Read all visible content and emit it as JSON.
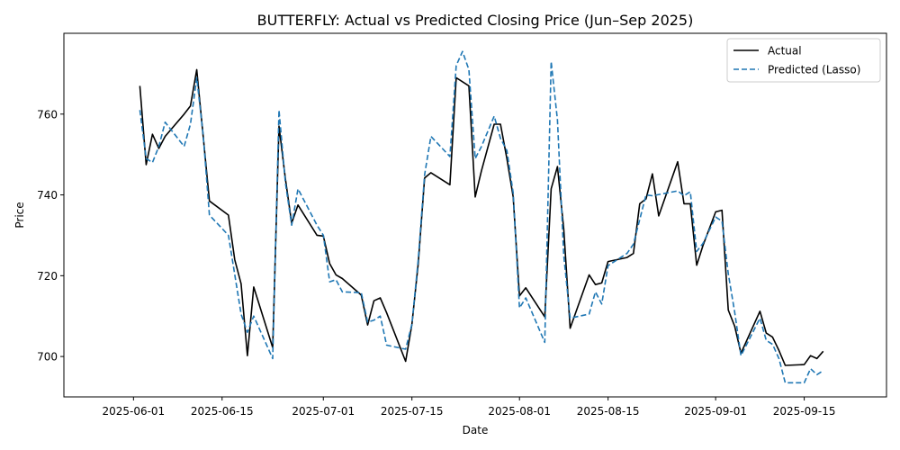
{
  "chart_data": {
    "type": "line",
    "title": "BUTTERFLY: Actual vs Predicted Closing Price (Jun–Sep 2025)",
    "xlabel": "Date",
    "ylabel": "Price",
    "x_ticks": [
      "2025-06-01",
      "2025-06-15",
      "2025-07-01",
      "2025-07-15",
      "2025-08-01",
      "2025-08-15",
      "2025-09-01",
      "2025-09-15"
    ],
    "y_ticks": [
      700,
      720,
      740,
      760
    ],
    "ylim": [
      690,
      780
    ],
    "xlim": [
      "2025-05-21",
      "2025-09-28"
    ],
    "grid": false,
    "legend_position": "top-right",
    "colors": {
      "actual": "#000000",
      "predicted": "#1f77b4"
    },
    "series": [
      {
        "name": "Actual",
        "style": "solid",
        "points": [
          [
            "2025-06-02",
            767
          ],
          [
            "2025-06-03",
            747.5
          ],
          [
            "2025-06-04",
            755
          ],
          [
            "2025-06-05",
            751.5
          ],
          [
            "2025-06-06",
            754.5
          ],
          [
            "2025-06-09",
            760
          ],
          [
            "2025-06-10",
            762
          ],
          [
            "2025-06-11",
            771
          ],
          [
            "2025-06-13",
            738.5
          ],
          [
            "2025-06-16",
            735
          ],
          [
            "2025-06-17",
            724
          ],
          [
            "2025-06-18",
            718
          ],
          [
            "2025-06-19",
            700.2
          ],
          [
            "2025-06-20",
            717.2
          ],
          [
            "2025-06-23",
            702.2
          ],
          [
            "2025-06-24",
            757
          ],
          [
            "2025-06-25",
            744
          ],
          [
            "2025-06-26",
            733
          ],
          [
            "2025-06-27",
            737.5
          ],
          [
            "2025-06-30",
            730
          ],
          [
            "2025-07-01",
            729.8
          ],
          [
            "2025-07-02",
            723
          ],
          [
            "2025-07-03",
            720.2
          ],
          [
            "2025-07-04",
            719.3
          ],
          [
            "2025-07-07",
            715.2
          ],
          [
            "2025-07-08",
            707.8
          ],
          [
            "2025-07-09",
            713.8
          ],
          [
            "2025-07-10",
            714.5
          ],
          [
            "2025-07-11",
            710.8
          ],
          [
            "2025-07-14",
            698.8
          ],
          [
            "2025-07-15",
            708
          ],
          [
            "2025-07-16",
            723
          ],
          [
            "2025-07-17",
            744.2
          ],
          [
            "2025-07-18",
            745.5
          ],
          [
            "2025-07-21",
            742.5
          ],
          [
            "2025-07-22",
            769
          ],
          [
            "2025-07-24",
            767
          ],
          [
            "2025-07-25",
            739.5
          ],
          [
            "2025-07-26",
            746
          ],
          [
            "2025-07-28",
            757.5
          ],
          [
            "2025-07-29",
            757.5
          ],
          [
            "2025-07-30",
            749
          ],
          [
            "2025-07-31",
            739.5
          ],
          [
            "2025-08-01",
            715
          ],
          [
            "2025-08-02",
            717
          ],
          [
            "2025-08-05",
            709.8
          ],
          [
            "2025-08-06",
            741.5
          ],
          [
            "2025-08-07",
            747
          ],
          [
            "2025-08-08",
            731.5
          ],
          [
            "2025-08-09",
            707
          ],
          [
            "2025-08-12",
            720.2
          ],
          [
            "2025-08-13",
            717.8
          ],
          [
            "2025-08-14",
            718.2
          ],
          [
            "2025-08-15",
            723.5
          ],
          [
            "2025-08-18",
            724.5
          ],
          [
            "2025-08-19",
            725.5
          ],
          [
            "2025-08-20",
            737.8
          ],
          [
            "2025-08-21",
            739
          ],
          [
            "2025-08-22",
            745.2
          ],
          [
            "2025-08-23",
            734.8
          ],
          [
            "2025-08-26",
            748.2
          ],
          [
            "2025-08-27",
            737.8
          ],
          [
            "2025-08-28",
            737.8
          ],
          [
            "2025-08-29",
            722.6
          ],
          [
            "2025-08-30",
            727.5
          ],
          [
            "2025-09-01",
            735.8
          ],
          [
            "2025-09-02",
            736.2
          ],
          [
            "2025-09-03",
            711.5
          ],
          [
            "2025-09-04",
            707.5
          ],
          [
            "2025-09-05",
            700.8
          ],
          [
            "2025-09-08",
            711.2
          ],
          [
            "2025-09-09",
            705.8
          ],
          [
            "2025-09-10",
            704.8
          ],
          [
            "2025-09-11",
            701.5
          ],
          [
            "2025-09-12",
            697.8
          ],
          [
            "2025-09-15",
            698
          ],
          [
            "2025-09-16",
            700.2
          ],
          [
            "2025-09-17",
            699.5
          ],
          [
            "2025-09-18",
            701.3
          ]
        ]
      },
      {
        "name": "Predicted (Lasso)",
        "style": "dashed",
        "points": [
          [
            "2025-06-02",
            761
          ],
          [
            "2025-06-03",
            749
          ],
          [
            "2025-06-04",
            748
          ],
          [
            "2025-06-05",
            752
          ],
          [
            "2025-06-06",
            758
          ],
          [
            "2025-06-07",
            756
          ],
          [
            "2025-06-09",
            752
          ],
          [
            "2025-06-10",
            757.5
          ],
          [
            "2025-06-11",
            769
          ],
          [
            "2025-06-12",
            755
          ],
          [
            "2025-06-13",
            735
          ],
          [
            "2025-06-16",
            730
          ],
          [
            "2025-06-18",
            710.5
          ],
          [
            "2025-06-19",
            706
          ],
          [
            "2025-06-20",
            710
          ],
          [
            "2025-06-23",
            699.5
          ],
          [
            "2025-06-24",
            761
          ],
          [
            "2025-06-25",
            743
          ],
          [
            "2025-06-26",
            732.5
          ],
          [
            "2025-06-27",
            741.5
          ],
          [
            "2025-06-30",
            732.5
          ],
          [
            "2025-07-01",
            730
          ],
          [
            "2025-07-02",
            718.5
          ],
          [
            "2025-07-03",
            719
          ],
          [
            "2025-07-04",
            716
          ],
          [
            "2025-07-07",
            715.8
          ],
          [
            "2025-07-08",
            708.5
          ],
          [
            "2025-07-09",
            709
          ],
          [
            "2025-07-10",
            710
          ],
          [
            "2025-07-11",
            702.8
          ],
          [
            "2025-07-14",
            701.8
          ],
          [
            "2025-07-15",
            708
          ],
          [
            "2025-07-16",
            724
          ],
          [
            "2025-07-17",
            745
          ],
          [
            "2025-07-18",
            754.5
          ],
          [
            "2025-07-21",
            749.5
          ],
          [
            "2025-07-22",
            772
          ],
          [
            "2025-07-23",
            775.5
          ],
          [
            "2025-07-24",
            771
          ],
          [
            "2025-07-25",
            749
          ],
          [
            "2025-07-26",
            752
          ],
          [
            "2025-07-28",
            759.5
          ],
          [
            "2025-07-29",
            754
          ],
          [
            "2025-07-30",
            751
          ],
          [
            "2025-07-31",
            740.5
          ],
          [
            "2025-08-01",
            712
          ],
          [
            "2025-08-02",
            714.5
          ],
          [
            "2025-08-05",
            703.5
          ],
          [
            "2025-08-06",
            773
          ],
          [
            "2025-08-07",
            758.5
          ],
          [
            "2025-08-08",
            725
          ],
          [
            "2025-08-09",
            709.5
          ],
          [
            "2025-08-12",
            710.5
          ],
          [
            "2025-08-13",
            716
          ],
          [
            "2025-08-14",
            713
          ],
          [
            "2025-08-15",
            722.5
          ],
          [
            "2025-08-18",
            725.5
          ],
          [
            "2025-08-19",
            727.8
          ],
          [
            "2025-08-21",
            740
          ],
          [
            "2025-08-22",
            739.8
          ],
          [
            "2025-08-26",
            741
          ],
          [
            "2025-08-27",
            739.8
          ],
          [
            "2025-08-28",
            740.8
          ],
          [
            "2025-08-29",
            726
          ],
          [
            "2025-08-30",
            728
          ],
          [
            "2025-09-01",
            734.5
          ],
          [
            "2025-09-02",
            733.5
          ],
          [
            "2025-09-03",
            720.5
          ],
          [
            "2025-09-04",
            711
          ],
          [
            "2025-09-05",
            700.2
          ],
          [
            "2025-09-08",
            709.5
          ],
          [
            "2025-09-09",
            704
          ],
          [
            "2025-09-10",
            703
          ],
          [
            "2025-09-11",
            699.5
          ],
          [
            "2025-09-12",
            693.5
          ],
          [
            "2025-09-15",
            693.5
          ],
          [
            "2025-09-16",
            697
          ],
          [
            "2025-09-17",
            695.5
          ],
          [
            "2025-09-18",
            696.5
          ]
        ]
      }
    ]
  }
}
